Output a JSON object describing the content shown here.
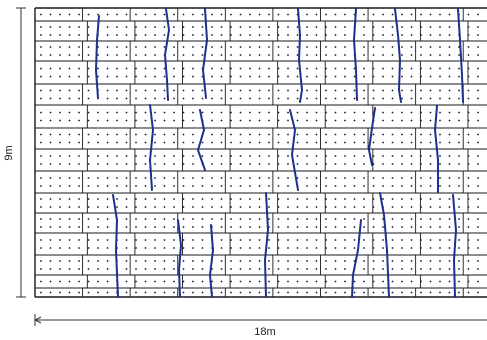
{
  "dimensions": {
    "height_label": "9m",
    "width_label": "18m"
  },
  "colors": {
    "grid": "#1a1a1a",
    "dots": "#1a1a1a",
    "cracks": "#1f2f8f",
    "dimension": "#333333"
  }
}
